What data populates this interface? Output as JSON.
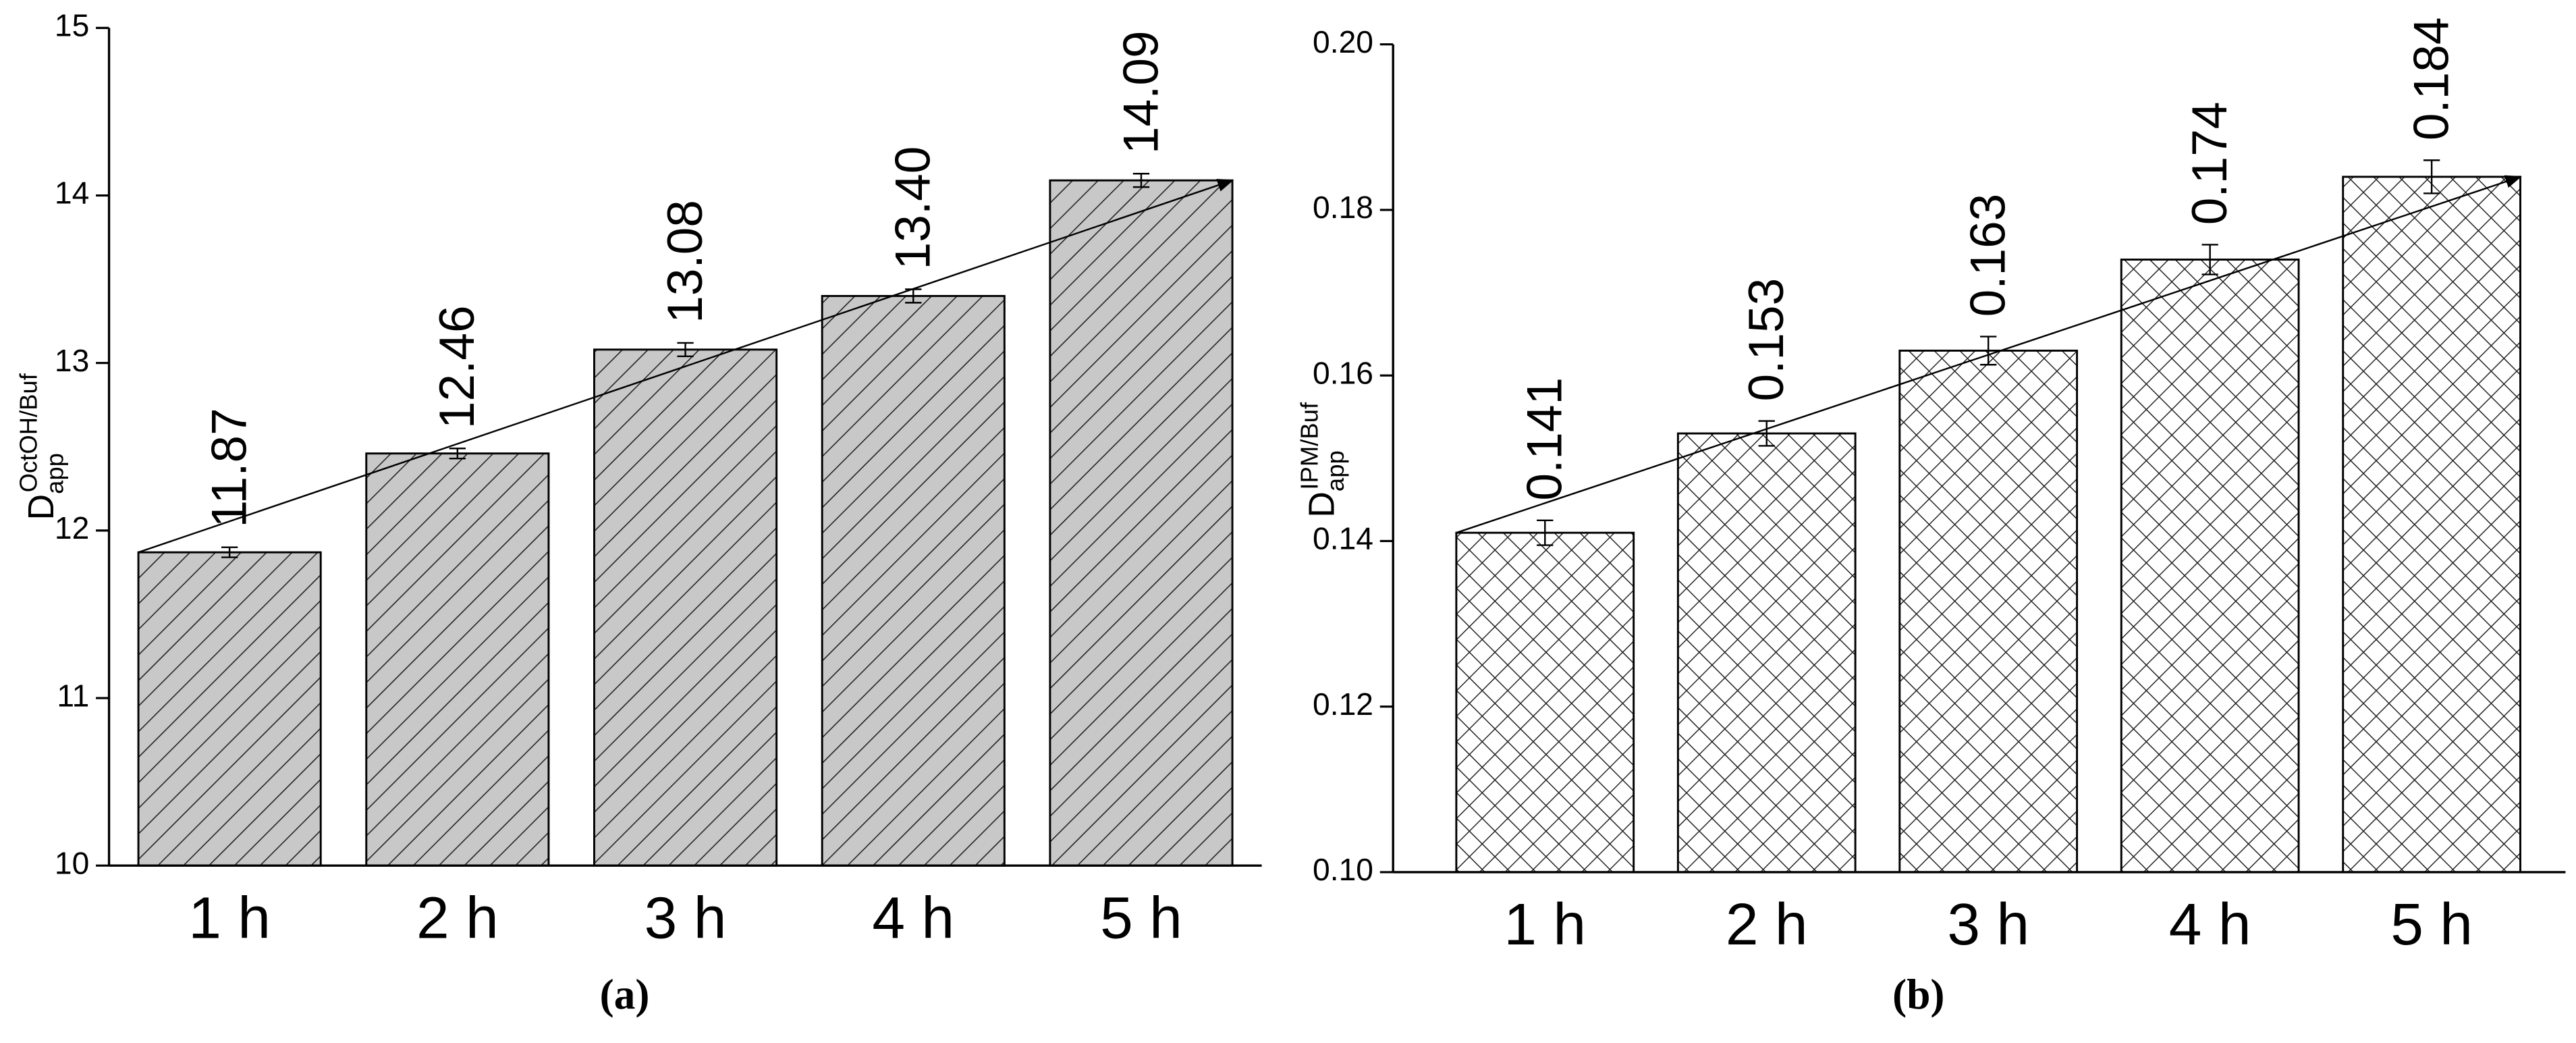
{
  "chart_data": [
    {
      "type": "bar",
      "panel": "(a)",
      "y_label": {
        "main": "D",
        "sub": "app",
        "sup": "OctOH/Buf"
      },
      "categories": [
        "1 h",
        "2 h",
        "3 h",
        "4 h",
        "5 h"
      ],
      "values": [
        11.87,
        12.46,
        13.08,
        13.4,
        14.09
      ],
      "value_labels": [
        "11.87",
        "12.46",
        "13.08",
        "13.40",
        "14.09"
      ],
      "errors": [
        0.03,
        0.03,
        0.04,
        0.04,
        0.04
      ],
      "color": "#c8c8c8",
      "hatch": "diagonal",
      "ylim": [
        10,
        15
      ],
      "yticks": [
        10,
        11,
        12,
        13,
        14,
        15
      ]
    },
    {
      "type": "bar",
      "panel": "(b)",
      "y_label": {
        "main": "D",
        "sub": "app",
        "sup": "IPM/Buf"
      },
      "categories": [
        "1 h",
        "2 h",
        "3 h",
        "4 h",
        "5 h"
      ],
      "values": [
        0.141,
        0.153,
        0.163,
        0.174,
        0.184
      ],
      "errors": [
        0.0015,
        0.0015,
        0.0017,
        0.0018,
        0.002
      ],
      "color": "#ffffff",
      "hatch": "crosshatch",
      "ylim": [
        0.1,
        0.2
      ],
      "yticks": [
        {
          "value": 0.1,
          "label": "0.10"
        },
        0.12,
        0.14,
        0.16,
        0.18,
        {
          "value": 0.2,
          "label": "0.20"
        }
      ]
    }
  ]
}
